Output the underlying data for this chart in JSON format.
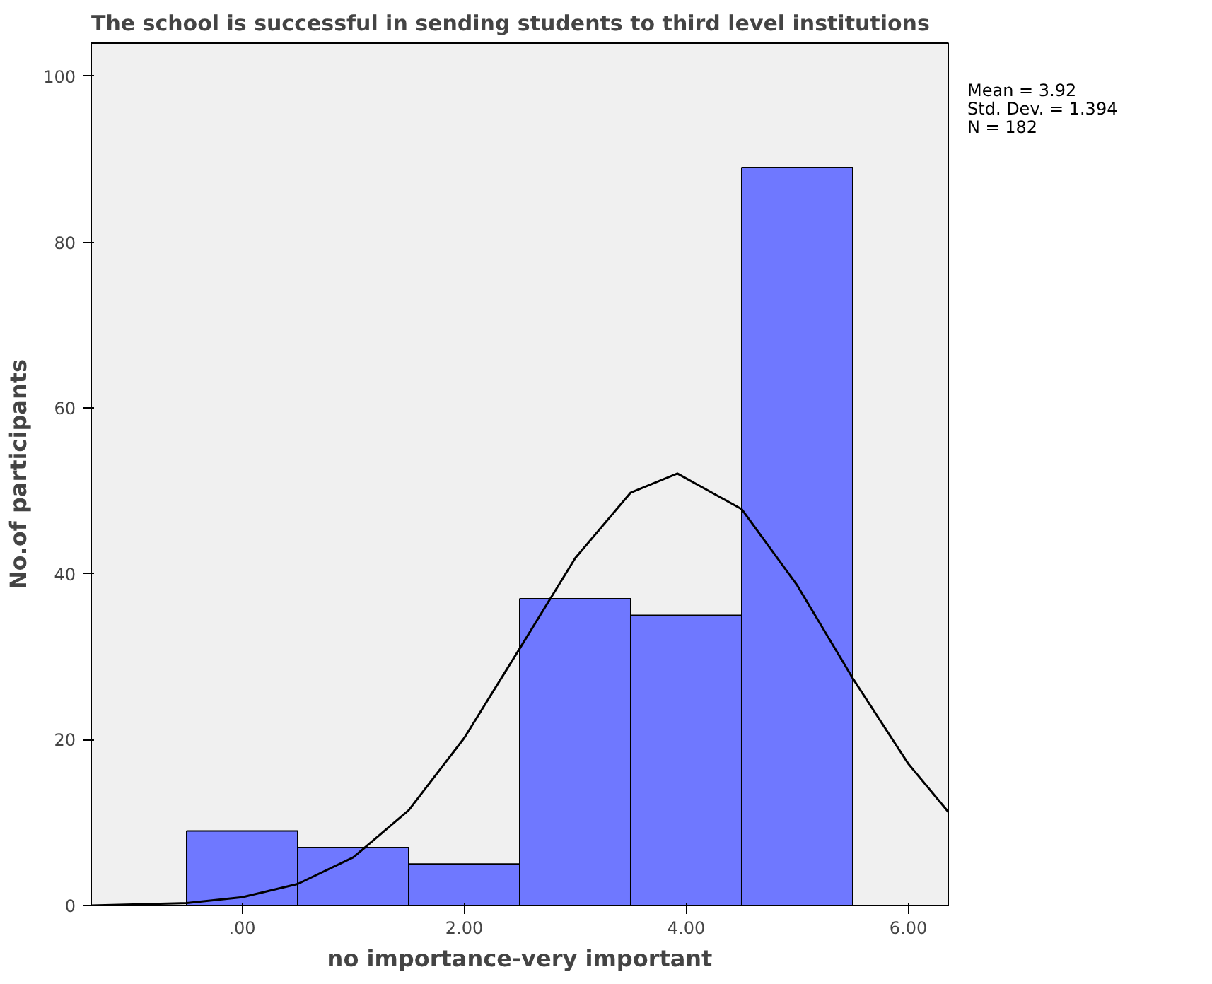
{
  "chart_data": {
    "type": "histogram",
    "title": "The school is successful in sending students to third level institutions",
    "xlabel": "no importance-very important",
    "ylabel": "No.of participants",
    "bins": [
      -0.5,
      0.5,
      1.5,
      2.5,
      3.5,
      4.5,
      5.5
    ],
    "values": [
      9,
      7,
      5,
      37,
      35,
      89
    ],
    "color": "#6f78ff",
    "series": [
      {
        "type": "line",
        "color": "#000000",
        "x": [
          -1.36,
          -0.5,
          0,
          0.5,
          1,
          1.5,
          2,
          2.5,
          3,
          3.5,
          3.92,
          4.5,
          5,
          5.5,
          6,
          6.36
        ],
        "values": [
          0.0,
          0.3,
          1.0,
          2.6,
          5.8,
          11.5,
          20.2,
          31.0,
          41.9,
          49.8,
          52.1,
          47.8,
          38.6,
          27.4,
          17.1,
          11.3
        ]
      }
    ],
    "xlim": [
      -1.36,
      6.36
    ],
    "xticks": [
      {
        "value": 0,
        "label": ".00"
      },
      {
        "value": 2,
        "label": "2.00"
      },
      {
        "value": 4,
        "label": "4.00"
      },
      {
        "value": 6,
        "label": "6.00"
      }
    ],
    "ylim": [
      0,
      104
    ],
    "yticks": [
      0,
      20,
      40,
      60,
      80,
      100
    ],
    "grid": false,
    "marker": "none",
    "annotations": [
      "Mean = 3.92",
      "Std. Dev. = 1.394",
      "N = 182"
    ]
  }
}
